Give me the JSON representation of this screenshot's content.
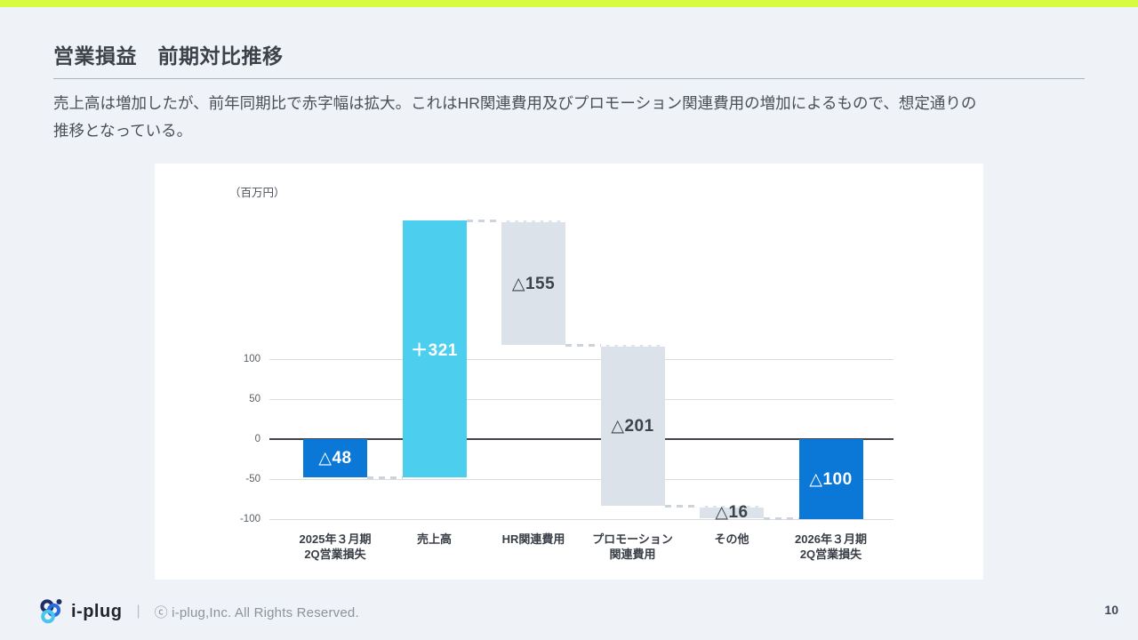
{
  "slide": {
    "title": "営業損益　前期対比推移",
    "lead_lines": [
      "売上高は増加したが、前年同期比で赤字幅は拡大。これはHR関連費用及びプロモーション関連費用の増加によるもので、想定通りの",
      "推移となっている。"
    ],
    "page_number": "10",
    "accent_color": "#d7fb41"
  },
  "footer": {
    "logo_text": "i-plug",
    "separator": "|",
    "copyright": "ⓒ i-plug,Inc. All Rights Reserved."
  },
  "chart_data": {
    "type": "bar",
    "subtype": "waterfall",
    "title": "",
    "unit_label": "（百万円）",
    "ylabel": "百万円",
    "ylim": [
      -100,
      273
    ],
    "yticks": [
      100,
      50,
      0,
      -50,
      -100
    ],
    "grid": true,
    "categories": [
      [
        "2025年３月期",
        "2Q営業損失"
      ],
      [
        "売上高"
      ],
      [
        "HR関連費用"
      ],
      [
        "プロモーション",
        "関連費用"
      ],
      [
        "その他"
      ],
      [
        "2026年３月期",
        "2Q営業損失"
      ]
    ],
    "bars": [
      {
        "name": "2025年3月期2Q営業損失",
        "label": "△48",
        "value": -48,
        "from": 0,
        "to": -48,
        "role": "total"
      },
      {
        "name": "売上高",
        "label": "＋321",
        "value": 321,
        "from": -48,
        "to": 273,
        "role": "increase"
      },
      {
        "name": "HR関連費用",
        "label": "△155",
        "value": -155,
        "from": 273,
        "to": 118,
        "role": "decrease"
      },
      {
        "name": "プロモーション関連費用",
        "label": "△201",
        "value": -201,
        "from": 118,
        "to": -83,
        "role": "decrease"
      },
      {
        "name": "その他",
        "label": "△16",
        "value": -16,
        "from": -83,
        "to": -99,
        "role": "decrease"
      },
      {
        "name": "2026年3月期2Q営業損失",
        "label": "△100",
        "value": -100,
        "from": 0,
        "to": -100,
        "role": "total"
      }
    ],
    "colors": {
      "total": "#0b78d7",
      "increase": "#4ccfee",
      "decrease": "#dce2e9",
      "zero_line": "#41464d",
      "gridline": "#d9dce0",
      "connector": "#ccd3db"
    }
  }
}
